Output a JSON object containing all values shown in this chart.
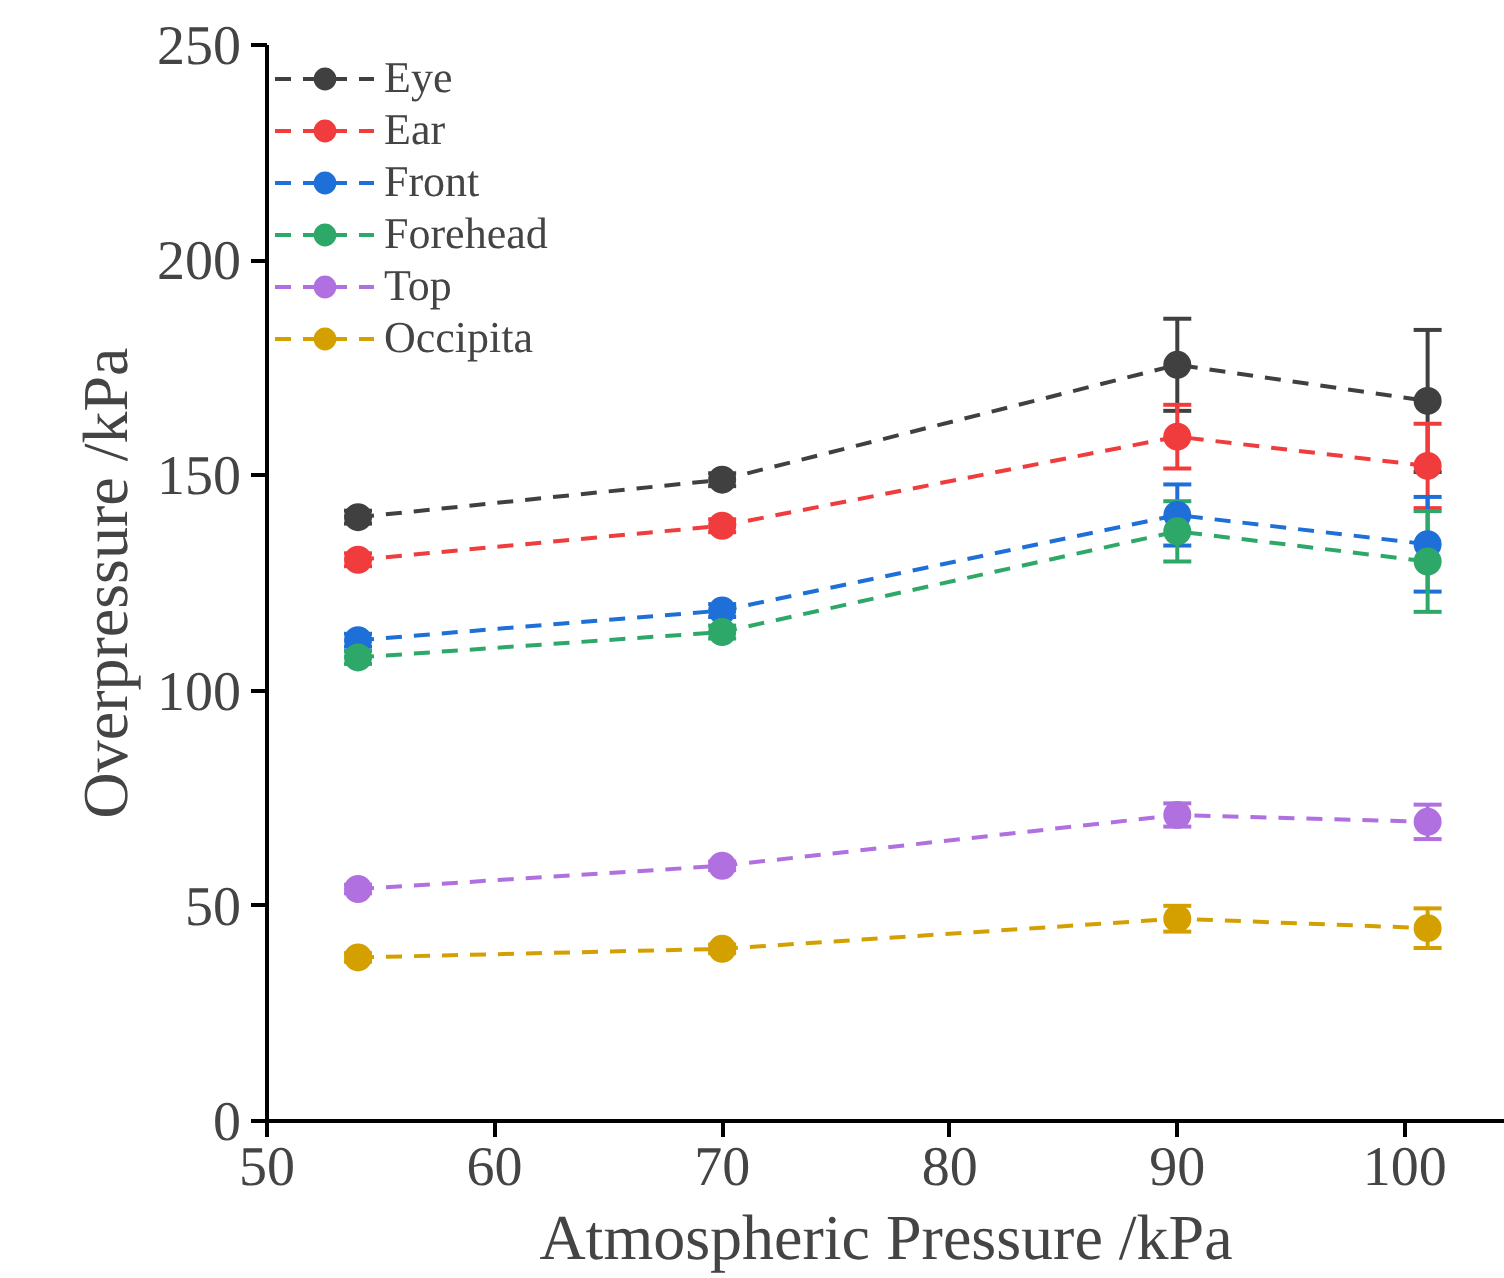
{
  "chart_data": {
    "type": "line",
    "xlabel": "Atmospheric Pressure /kPa",
    "ylabel": "Overpressure /kPa",
    "x": [
      54,
      70,
      90,
      101
    ],
    "xlim": [
      50,
      104.4
    ],
    "xticks": [
      50,
      60,
      70,
      80,
      90,
      100
    ],
    "ylim": [
      0,
      250
    ],
    "yticks": [
      0,
      50,
      100,
      150,
      200,
      250
    ],
    "grid": false,
    "legend": "top left",
    "marker": "circle",
    "line_style": "dashed",
    "series": [
      {
        "name": "Eye",
        "color": "#404040",
        "values": [
          140.3,
          149,
          175.7,
          167.3
        ],
        "errors": [
          1.5,
          1.5,
          10.7,
          16.5
        ]
      },
      {
        "name": "Ear",
        "color": "#f03c3c",
        "values": [
          130.4,
          138.3,
          159,
          152.2
        ],
        "errors": [
          1.5,
          1.5,
          7.4,
          9.8
        ]
      },
      {
        "name": "Front",
        "color": "#1f6fd8",
        "values": [
          111.7,
          118.6,
          140.8,
          134
        ],
        "errors": [
          1.5,
          1.5,
          7.1,
          11
        ]
      },
      {
        "name": "Forehead",
        "color": "#2ea868",
        "values": [
          107.7,
          113.6,
          137,
          130
        ],
        "errors": [
          1.5,
          1.5,
          7,
          11.7
        ]
      },
      {
        "name": "Top",
        "color": "#b070e0",
        "values": [
          53.9,
          59.3,
          71.1,
          69.5
        ],
        "errors": [
          1,
          1,
          2.7,
          4
        ]
      },
      {
        "name": "Occipita",
        "color": "#d4a000",
        "values": [
          38,
          40,
          47,
          44.8
        ],
        "errors": [
          1,
          1,
          3,
          4.6
        ]
      }
    ]
  }
}
